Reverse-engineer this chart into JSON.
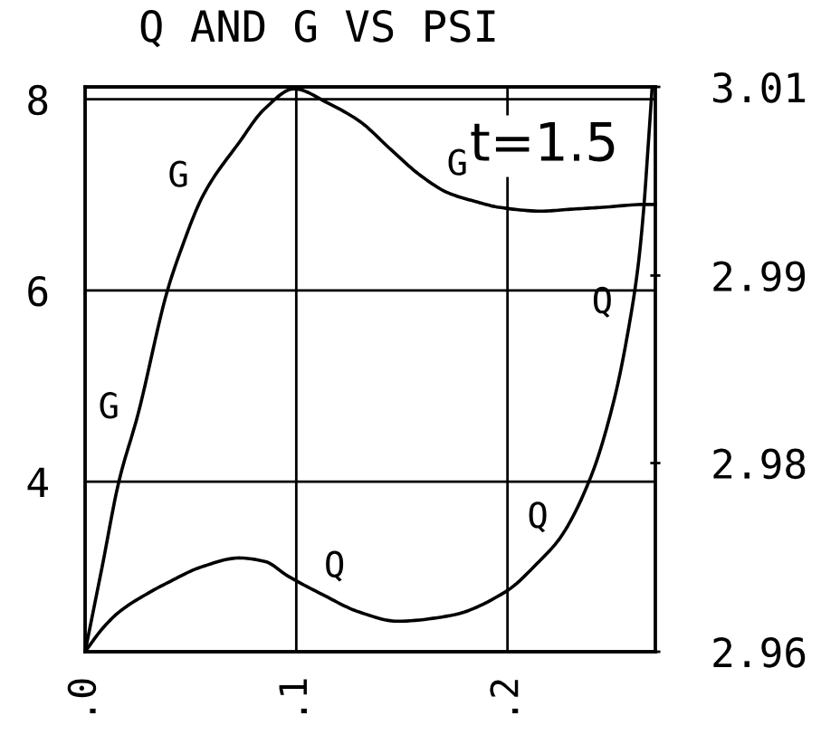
{
  "chart_data": {
    "type": "line",
    "title": "Q AND G VS PSI",
    "xlim": [
      0,
      0.27
    ],
    "xticks": [
      {
        "value": 0,
        "label": ".0"
      },
      {
        "value": 0.1,
        "label": ".1"
      },
      {
        "value": 0.2,
        "label": ".2"
      }
    ],
    "ylim": [
      2.22,
      8.13
    ],
    "yticks": [
      4,
      6,
      8
    ],
    "y2lim": [
      2.96,
      3.01
    ],
    "y2ticks": [
      2.96,
      {
        "value": 2.9767,
        "label": "2.98"
      },
      {
        "value": 2.9933,
        "label": "2.99"
      },
      3.01
    ],
    "grid": true,
    "marker": "none",
    "line_style": "solid",
    "series": [
      {
        "color": "#000000",
        "x": [
          0,
          0.008,
          0.016,
          0.025,
          0.039,
          0.045,
          0.056,
          0.073,
          0.085,
          0.099,
          0.115,
          0.13,
          0.145,
          0.159,
          0.172,
          0.185,
          0.196,
          0.216,
          0.23,
          0.245,
          0.265,
          0.27
        ],
        "values": [
          2.22,
          3.1,
          4.0,
          4.7,
          6.0,
          6.4,
          7.0,
          7.55,
          7.9,
          8.11,
          7.96,
          7.77,
          7.47,
          7.2,
          7.02,
          6.93,
          6.87,
          6.83,
          6.85,
          6.87,
          6.9,
          6.9
        ]
      },
      {
        "color": "#000000",
        "axis": "y2",
        "x": [
          0,
          0.008,
          0.016,
          0.03,
          0.039,
          0.055,
          0.073,
          0.085,
          0.096,
          0.112,
          0.13,
          0.148,
          0.173,
          0.199,
          0.215,
          0.225,
          0.2395,
          0.2506,
          0.2575,
          0.2618,
          0.2644,
          0.2665,
          0.2685
        ],
        "values": [
          2.96,
          2.962,
          2.9635,
          2.9652,
          2.9661,
          2.9675,
          2.9683,
          2.968,
          2.9667,
          2.9651,
          2.9635,
          2.9627,
          2.9632,
          2.9653,
          2.968,
          2.9701,
          2.9755,
          2.9824,
          2.9888,
          2.9941,
          2.999,
          3.0045,
          3.01
        ]
      }
    ],
    "annotations": [
      "t=1.5",
      {
        "text": "G",
        "x": 0.025,
        "y": 4.68
      },
      {
        "text": "G",
        "x": 0.056,
        "y": 7.01
      },
      {
        "text": "G",
        "x": 0.172,
        "y": 7.01
      },
      {
        "text": "Q",
        "x": 0.112,
        "y": 2.82
      },
      {
        "text": "Q",
        "x": 0.225,
        "y": 3.41
      },
      {
        "text": "Q",
        "x": 0.259,
        "y": 5.82
      }
    ]
  }
}
